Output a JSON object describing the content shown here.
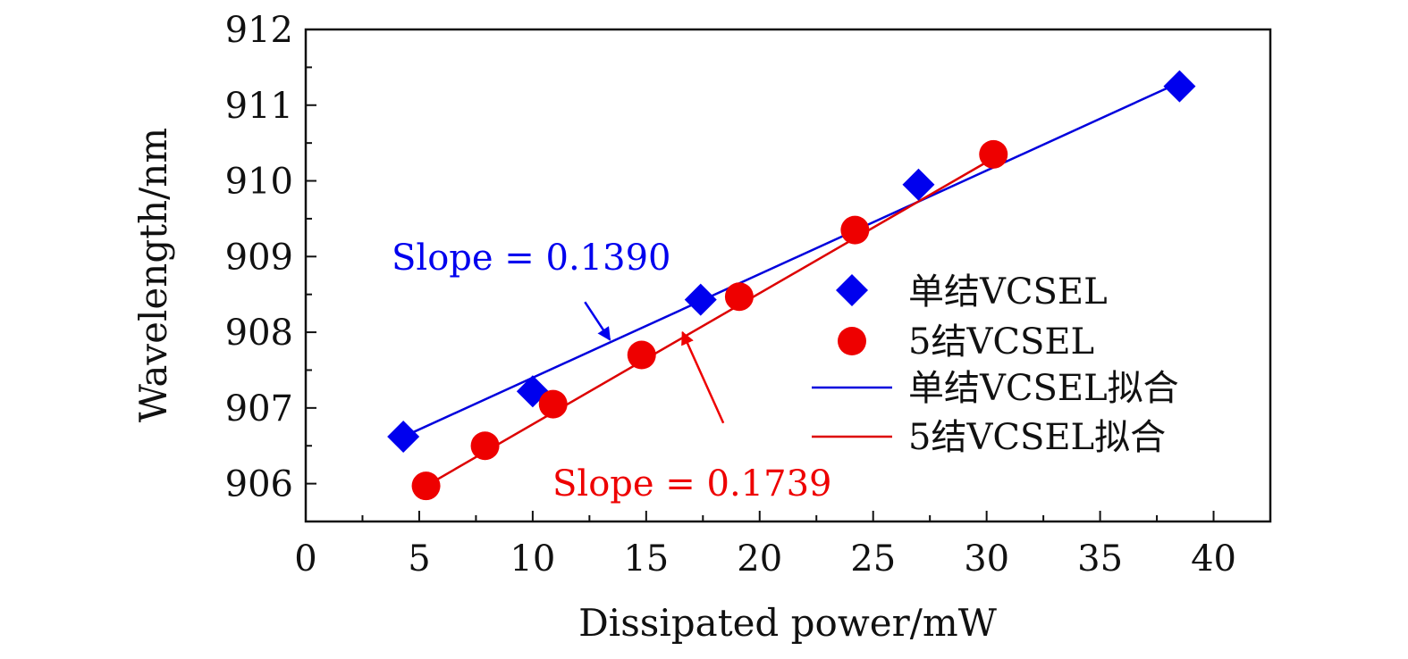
{
  "chart_data": {
    "type": "scatter",
    "title": "",
    "xlabel": "Dissipated power/mW",
    "ylabel": "Wavelength/nm",
    "xlim": [
      0,
      42.5
    ],
    "ylim": [
      905.5,
      912
    ],
    "xticks": [
      0,
      5,
      10,
      15,
      20,
      25,
      30,
      35,
      40
    ],
    "yticks": [
      906,
      907,
      908,
      909,
      910,
      911,
      912
    ],
    "xtick_labels": [
      "0",
      "5",
      "10",
      "15",
      "20",
      "25",
      "30",
      "35",
      "40"
    ],
    "ytick_labels": [
      "906",
      "907",
      "908",
      "909",
      "910",
      "911",
      "912"
    ],
    "grid": false,
    "legend_position": "center-right",
    "series": [
      {
        "name": "单结VCSEL",
        "marker": "diamond",
        "color": "#0000ee",
        "x": [
          4.3,
          10.0,
          17.4,
          27.0,
          38.5
        ],
        "y": [
          906.62,
          907.22,
          908.43,
          909.95,
          911.25
        ]
      },
      {
        "name": "5结VCSEL",
        "marker": "circle",
        "color": "#ee0000",
        "x": [
          5.3,
          7.9,
          10.9,
          14.8,
          19.1,
          24.2,
          30.3
        ],
        "y": [
          905.97,
          906.5,
          907.05,
          907.7,
          908.47,
          909.35,
          910.35
        ]
      }
    ],
    "fits": [
      {
        "name": "单结VCSEL拟合",
        "color": "#0000dd",
        "x": [
          4.3,
          38.5
        ],
        "y": [
          906.62,
          911.3
        ]
      },
      {
        "name": "5结VCSEL拟合",
        "color": "#dd0000",
        "x": [
          5.3,
          30.3
        ],
        "y": [
          905.97,
          910.3
        ]
      }
    ],
    "annotations": [
      {
        "text": "Slope = 0.1390",
        "color": "#0000ee",
        "arrow_to": [
          13.4,
          907.9
        ],
        "arrow_from": [
          12.3,
          908.4
        ]
      },
      {
        "text": "Slope = 0.1739",
        "color": "#ee0000",
        "arrow_to": [
          16.6,
          908.0
        ],
        "arrow_from": [
          18.4,
          906.8
        ]
      }
    ]
  }
}
